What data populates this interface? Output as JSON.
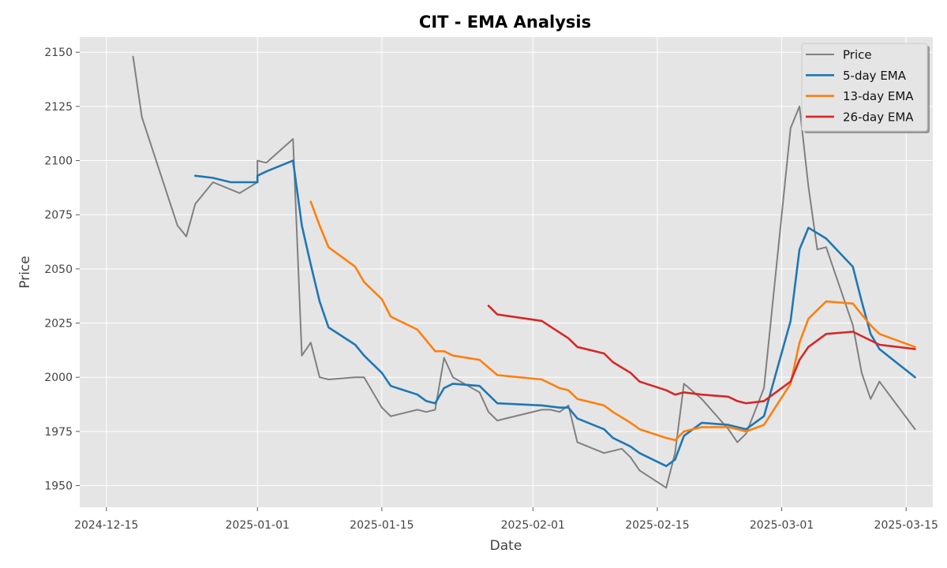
{
  "chart_data": {
    "type": "line",
    "title": "CIT - EMA Analysis",
    "xlabel": "Date",
    "ylabel": "Price",
    "ylim": [
      1940,
      2157
    ],
    "xlim": [
      "2024-12-12",
      "2025-03-18"
    ],
    "yticks": [
      1950,
      1975,
      2000,
      2025,
      2050,
      2075,
      2100,
      2125,
      2150
    ],
    "xticks": [
      {
        "date": "2024-12-15",
        "label": "2024-12-15"
      },
      {
        "date": "2025-01-01",
        "label": "2025-01-01"
      },
      {
        "date": "2025-01-15",
        "label": "2025-01-15"
      },
      {
        "date": "2025-02-01",
        "label": "2025-02-01"
      },
      {
        "date": "2025-02-15",
        "label": "2025-02-15"
      },
      {
        "date": "2025-03-01",
        "label": "2025-03-01"
      },
      {
        "date": "2025-03-15",
        "label": "2025-03-15"
      }
    ],
    "grid": true,
    "legend_position": "top-right",
    "series": [
      {
        "name": "Price",
        "color": "#808080",
        "points": [
          [
            "2024-12-18",
            2148
          ],
          [
            "2024-12-19",
            2120
          ],
          [
            "2024-12-23",
            2070
          ],
          [
            "2024-12-24",
            2065
          ],
          [
            "2024-12-25",
            2080
          ],
          [
            "2024-12-27",
            2090
          ],
          [
            "2024-12-30",
            2085
          ],
          [
            "2025-01-01",
            2090
          ],
          [
            "2025-01-01",
            2100
          ],
          [
            "2025-01-02",
            2099
          ],
          [
            "2025-01-05",
            2110
          ],
          [
            "2025-01-06",
            2010
          ],
          [
            "2025-01-07",
            2016
          ],
          [
            "2025-01-08",
            2000
          ],
          [
            "2025-01-09",
            1999
          ],
          [
            "2025-01-12",
            2000
          ],
          [
            "2025-01-13",
            2000
          ],
          [
            "2025-01-15",
            1986
          ],
          [
            "2025-01-16",
            1982
          ],
          [
            "2025-01-19",
            1985
          ],
          [
            "2025-01-20",
            1984
          ],
          [
            "2025-01-21",
            1985
          ],
          [
            "2025-01-22",
            2009
          ],
          [
            "2025-01-23",
            2000
          ],
          [
            "2025-01-26",
            1993
          ],
          [
            "2025-01-27",
            1984
          ],
          [
            "2025-01-28",
            1980
          ],
          [
            "2025-02-02",
            1985
          ],
          [
            "2025-02-03",
            1985
          ],
          [
            "2025-02-04",
            1984
          ],
          [
            "2025-02-05",
            1987
          ],
          [
            "2025-02-06",
            1970
          ],
          [
            "2025-02-09",
            1965
          ],
          [
            "2025-02-11",
            1967
          ],
          [
            "2025-02-12",
            1963
          ],
          [
            "2025-02-13",
            1957
          ],
          [
            "2025-02-16",
            1949
          ],
          [
            "2025-02-17",
            1965
          ],
          [
            "2025-02-18",
            1997
          ],
          [
            "2025-02-20",
            1990
          ],
          [
            "2025-02-23",
            1976
          ],
          [
            "2025-02-24",
            1970
          ],
          [
            "2025-02-25",
            1974
          ],
          [
            "2025-02-27",
            1995
          ],
          [
            "2025-03-02",
            2115
          ],
          [
            "2025-03-03",
            2125
          ],
          [
            "2025-03-04",
            2088
          ],
          [
            "2025-03-05",
            2059
          ],
          [
            "2025-03-06",
            2060
          ],
          [
            "2025-03-09",
            2024
          ],
          [
            "2025-03-10",
            2002
          ],
          [
            "2025-03-11",
            1990
          ],
          [
            "2025-03-12",
            1998
          ],
          [
            "2025-03-16",
            1976
          ]
        ]
      },
      {
        "name": "5-day EMA",
        "color": "#1f77b4",
        "points": [
          [
            "2024-12-25",
            2093
          ],
          [
            "2024-12-27",
            2092
          ],
          [
            "2024-12-29",
            2090
          ],
          [
            "2025-01-01",
            2090
          ],
          [
            "2025-01-01",
            2093
          ],
          [
            "2025-01-02",
            2095
          ],
          [
            "2025-01-05",
            2100
          ],
          [
            "2025-01-06",
            2070
          ],
          [
            "2025-01-07",
            2052
          ],
          [
            "2025-01-08",
            2035
          ],
          [
            "2025-01-09",
            2023
          ],
          [
            "2025-01-12",
            2015
          ],
          [
            "2025-01-13",
            2010
          ],
          [
            "2025-01-15",
            2002
          ],
          [
            "2025-01-16",
            1996
          ],
          [
            "2025-01-19",
            1992
          ],
          [
            "2025-01-20",
            1989
          ],
          [
            "2025-01-21",
            1988
          ],
          [
            "2025-01-22",
            1995
          ],
          [
            "2025-01-23",
            1997
          ],
          [
            "2025-01-26",
            1996
          ],
          [
            "2025-01-28",
            1988
          ],
          [
            "2025-02-02",
            1987
          ],
          [
            "2025-02-04",
            1986
          ],
          [
            "2025-02-05",
            1986
          ],
          [
            "2025-02-06",
            1981
          ],
          [
            "2025-02-09",
            1976
          ],
          [
            "2025-02-10",
            1972
          ],
          [
            "2025-02-11",
            1970
          ],
          [
            "2025-02-12",
            1968
          ],
          [
            "2025-02-13",
            1965
          ],
          [
            "2025-02-16",
            1959
          ],
          [
            "2025-02-17",
            1962
          ],
          [
            "2025-02-18",
            1973
          ],
          [
            "2025-02-20",
            1979
          ],
          [
            "2025-02-23",
            1978
          ],
          [
            "2025-02-25",
            1976
          ],
          [
            "2025-02-27",
            1982
          ],
          [
            "2025-03-02",
            2026
          ],
          [
            "2025-03-03",
            2059
          ],
          [
            "2025-03-04",
            2069
          ],
          [
            "2025-03-06",
            2064
          ],
          [
            "2025-03-09",
            2051
          ],
          [
            "2025-03-10",
            2035
          ],
          [
            "2025-03-11",
            2020
          ],
          [
            "2025-03-12",
            2013
          ],
          [
            "2025-03-16",
            2000
          ]
        ]
      },
      {
        "name": "13-day EMA",
        "color": "#ff7f0e",
        "points": [
          [
            "2025-01-07",
            2081
          ],
          [
            "2025-01-08",
            2070
          ],
          [
            "2025-01-09",
            2060
          ],
          [
            "2025-01-12",
            2051
          ],
          [
            "2025-01-13",
            2044
          ],
          [
            "2025-01-15",
            2036
          ],
          [
            "2025-01-16",
            2028
          ],
          [
            "2025-01-19",
            2022
          ],
          [
            "2025-01-20",
            2017
          ],
          [
            "2025-01-21",
            2012
          ],
          [
            "2025-01-22",
            2012
          ],
          [
            "2025-01-23",
            2010
          ],
          [
            "2025-01-26",
            2008
          ],
          [
            "2025-01-28",
            2001
          ],
          [
            "2025-02-02",
            1999
          ],
          [
            "2025-02-04",
            1995
          ],
          [
            "2025-02-05",
            1994
          ],
          [
            "2025-02-06",
            1990
          ],
          [
            "2025-02-09",
            1987
          ],
          [
            "2025-02-10",
            1984
          ],
          [
            "2025-02-12",
            1979
          ],
          [
            "2025-02-13",
            1976
          ],
          [
            "2025-02-16",
            1972
          ],
          [
            "2025-02-17",
            1971
          ],
          [
            "2025-02-18",
            1975
          ],
          [
            "2025-02-20",
            1977
          ],
          [
            "2025-02-23",
            1977
          ],
          [
            "2025-02-24",
            1976
          ],
          [
            "2025-02-25",
            1975
          ],
          [
            "2025-02-27",
            1978
          ],
          [
            "2025-03-02",
            1997
          ],
          [
            "2025-03-03",
            2016
          ],
          [
            "2025-03-04",
            2027
          ],
          [
            "2025-03-05",
            2031
          ],
          [
            "2025-03-06",
            2035
          ],
          [
            "2025-03-09",
            2034
          ],
          [
            "2025-03-10",
            2029
          ],
          [
            "2025-03-11",
            2024
          ],
          [
            "2025-03-12",
            2020
          ],
          [
            "2025-03-16",
            2014
          ]
        ]
      },
      {
        "name": "26-day EMA",
        "color": "#d62728",
        "points": [
          [
            "2025-01-27",
            2033
          ],
          [
            "2025-01-28",
            2029
          ],
          [
            "2025-02-02",
            2026
          ],
          [
            "2025-02-05",
            2018
          ],
          [
            "2025-02-06",
            2014
          ],
          [
            "2025-02-09",
            2011
          ],
          [
            "2025-02-10",
            2007
          ],
          [
            "2025-02-12",
            2002
          ],
          [
            "2025-02-13",
            1998
          ],
          [
            "2025-02-16",
            1994
          ],
          [
            "2025-02-17",
            1992
          ],
          [
            "2025-02-18",
            1993
          ],
          [
            "2025-02-20",
            1992
          ],
          [
            "2025-02-23",
            1991
          ],
          [
            "2025-02-24",
            1989
          ],
          [
            "2025-02-25",
            1988
          ],
          [
            "2025-02-27",
            1989
          ],
          [
            "2025-03-02",
            1998
          ],
          [
            "2025-03-03",
            2008
          ],
          [
            "2025-03-04",
            2014
          ],
          [
            "2025-03-06",
            2020
          ],
          [
            "2025-03-09",
            2021
          ],
          [
            "2025-03-10",
            2019
          ],
          [
            "2025-03-11",
            2017
          ],
          [
            "2025-03-12",
            2015
          ],
          [
            "2025-03-16",
            2013
          ]
        ]
      }
    ]
  }
}
